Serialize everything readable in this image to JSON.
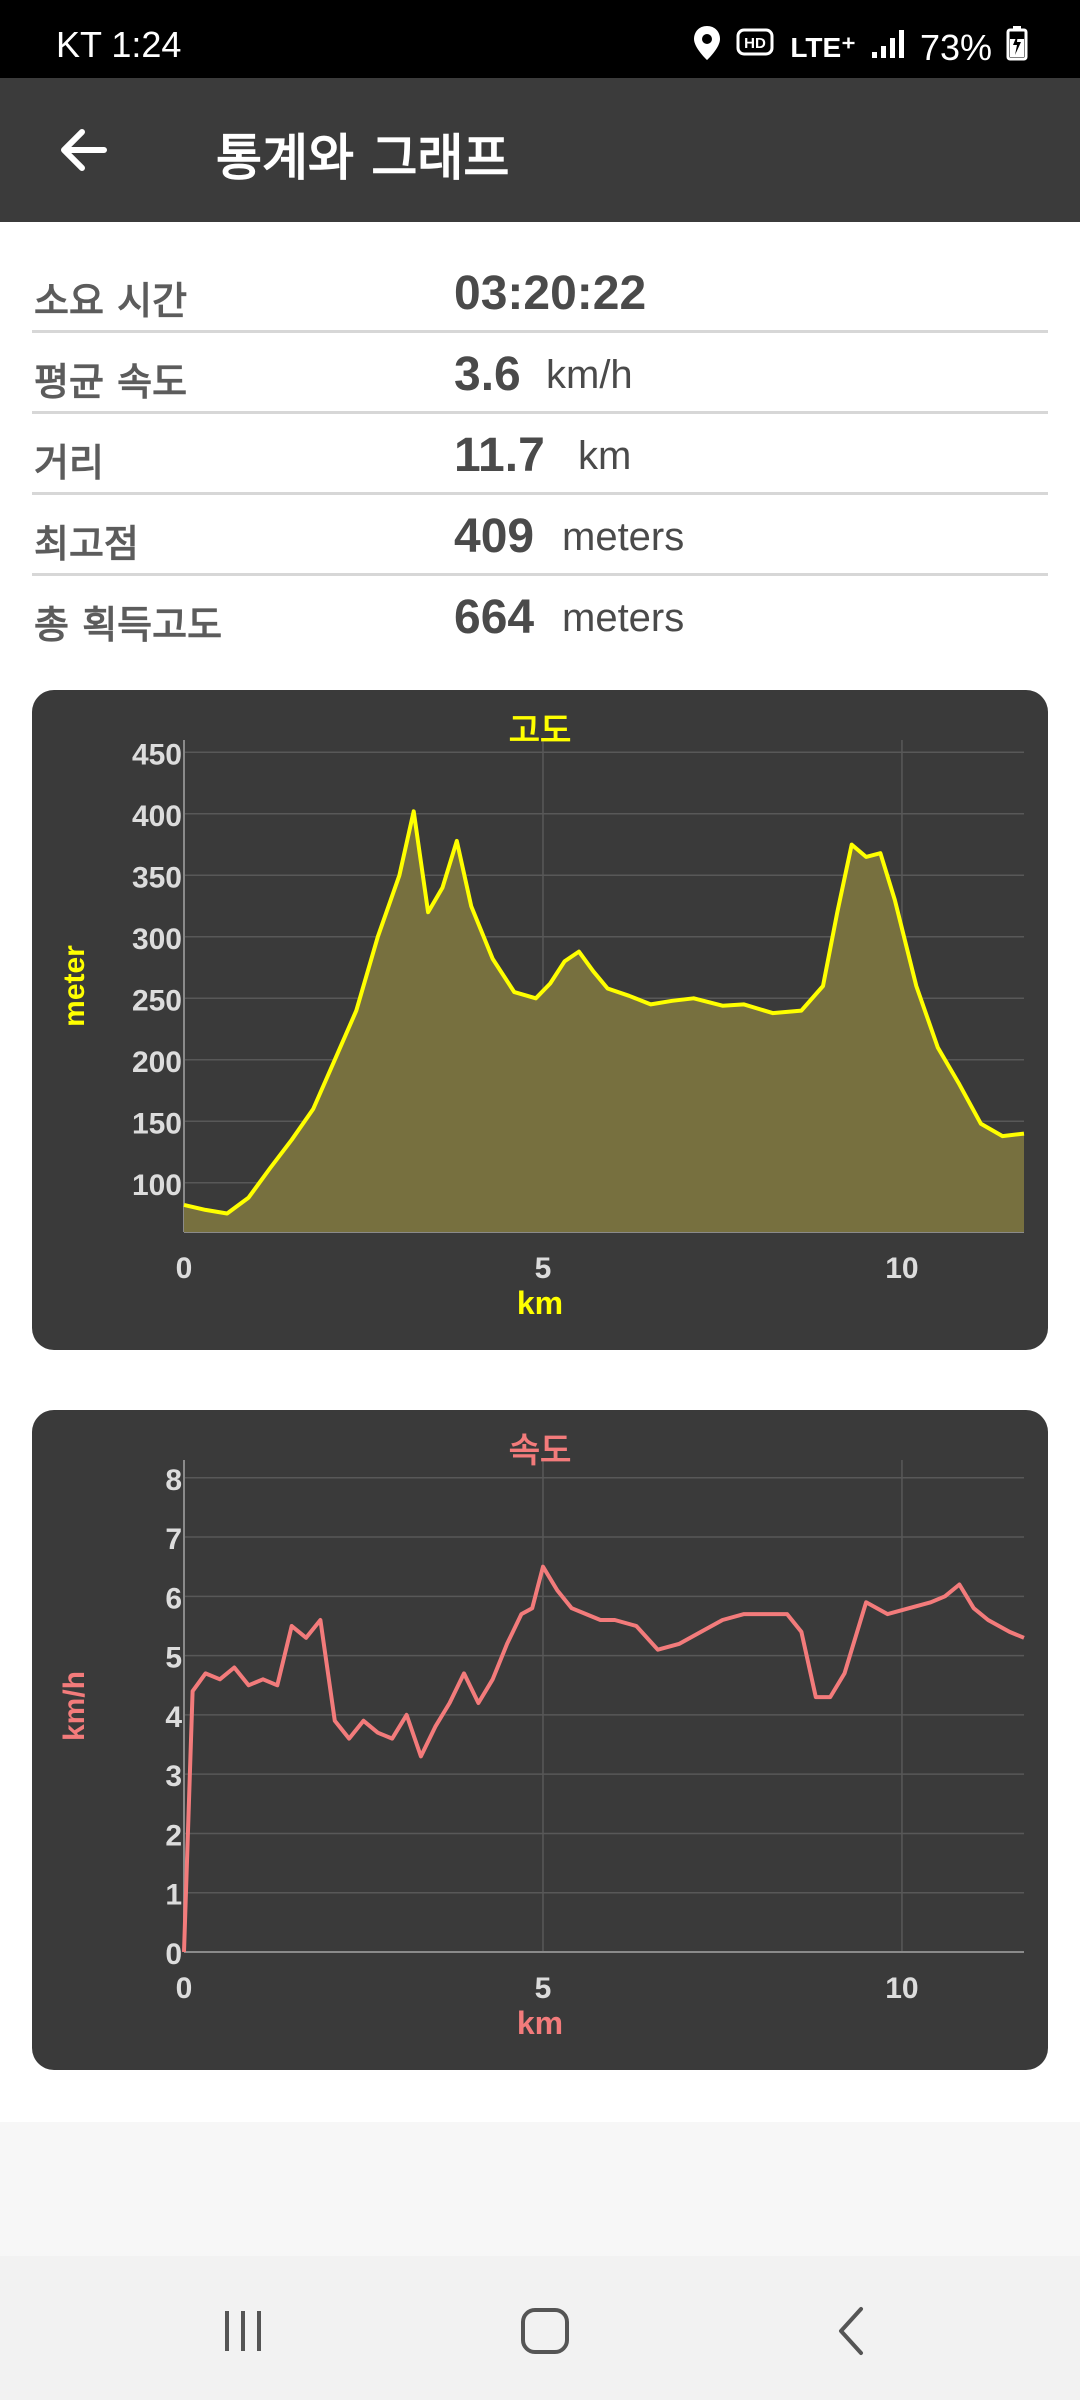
{
  "status_bar": {
    "carrier_time": "KT 1:24",
    "network": "LTE⁺",
    "battery": "73%",
    "icons": [
      "location-icon",
      "hd-voice-icon",
      "lte-data-icon",
      "signal-icon",
      "battery-charging-icon"
    ]
  },
  "app_bar": {
    "back_icon": "arrow-left-icon",
    "title": "통계와 그래프"
  },
  "stats": [
    {
      "label": "소요 시간",
      "value": "03:20:22",
      "unit": ""
    },
    {
      "label": "평균 속도",
      "value": "3.6",
      "unit": "km/h"
    },
    {
      "label": "거리",
      "value": "11.7",
      "unit": "km"
    },
    {
      "label": "최고점",
      "value": "409",
      "unit": "meters"
    },
    {
      "label": "총 획득고도",
      "value": "664",
      "unit": "meters"
    }
  ],
  "chart_data": [
    {
      "type": "area",
      "title": "고도",
      "xlabel": "km",
      "ylabel": "meter",
      "color": "#ffff00",
      "fill": "#77703f",
      "xlim": [
        0,
        11.7
      ],
      "ylim": [
        60,
        460
      ],
      "x_ticks": [
        0,
        5,
        10
      ],
      "y_ticks": [
        100,
        150,
        200,
        250,
        300,
        350,
        400,
        450
      ],
      "grid": true,
      "x": [
        0,
        0.3,
        0.6,
        0.9,
        1.2,
        1.5,
        1.8,
        2.1,
        2.4,
        2.7,
        3.0,
        3.2,
        3.4,
        3.6,
        3.8,
        4.0,
        4.3,
        4.6,
        4.9,
        5.1,
        5.3,
        5.5,
        5.7,
        5.9,
        6.2,
        6.5,
        6.8,
        7.1,
        7.5,
        7.8,
        8.2,
        8.6,
        8.9,
        9.1,
        9.3,
        9.5,
        9.7,
        9.9,
        10.2,
        10.5,
        10.8,
        11.1,
        11.4,
        11.7
      ],
      "y": [
        82,
        78,
        75,
        88,
        112,
        135,
        160,
        200,
        240,
        300,
        350,
        402,
        320,
        340,
        378,
        325,
        282,
        255,
        250,
        262,
        280,
        288,
        272,
        258,
        252,
        245,
        248,
        250,
        244,
        245,
        238,
        240,
        260,
        320,
        375,
        365,
        368,
        330,
        260,
        210,
        180,
        148,
        138,
        140
      ]
    },
    {
      "type": "line",
      "title": "속도",
      "xlabel": "km",
      "ylabel": "km/h",
      "color": "#f37b7b",
      "xlim": [
        0,
        11.7
      ],
      "ylim": [
        0,
        8.3
      ],
      "x_ticks": [
        0,
        5,
        10
      ],
      "y_ticks": [
        0,
        1,
        2,
        3,
        4,
        5,
        6,
        7,
        8
      ],
      "grid": true,
      "x": [
        0,
        0.12,
        0.3,
        0.5,
        0.7,
        0.9,
        1.1,
        1.3,
        1.5,
        1.7,
        1.9,
        2.1,
        2.3,
        2.5,
        2.7,
        2.9,
        3.1,
        3.3,
        3.5,
        3.7,
        3.9,
        4.1,
        4.3,
        4.5,
        4.7,
        4.85,
        5.0,
        5.2,
        5.4,
        5.6,
        5.8,
        6.0,
        6.3,
        6.6,
        6.9,
        7.2,
        7.5,
        7.8,
        8.1,
        8.4,
        8.6,
        8.8,
        9.0,
        9.2,
        9.5,
        9.8,
        10.1,
        10.4,
        10.6,
        10.8,
        11.0,
        11.2,
        11.5,
        11.7
      ],
      "y": [
        0,
        4.4,
        4.7,
        4.6,
        4.8,
        4.5,
        4.6,
        4.5,
        5.5,
        5.3,
        5.6,
        3.9,
        3.6,
        3.9,
        3.7,
        3.6,
        4.0,
        3.3,
        3.8,
        4.2,
        4.7,
        4.2,
        4.6,
        5.2,
        5.7,
        5.8,
        6.5,
        6.1,
        5.8,
        5.7,
        5.6,
        5.6,
        5.5,
        5.1,
        5.2,
        5.4,
        5.6,
        5.7,
        5.7,
        5.7,
        5.4,
        4.3,
        4.3,
        4.7,
        5.9,
        5.7,
        5.8,
        5.9,
        6.0,
        6.2,
        5.8,
        5.6,
        5.4,
        5.3
      ]
    }
  ],
  "nav_bar": {
    "icons": [
      "recent-apps-icon",
      "home-icon",
      "back-icon"
    ]
  }
}
